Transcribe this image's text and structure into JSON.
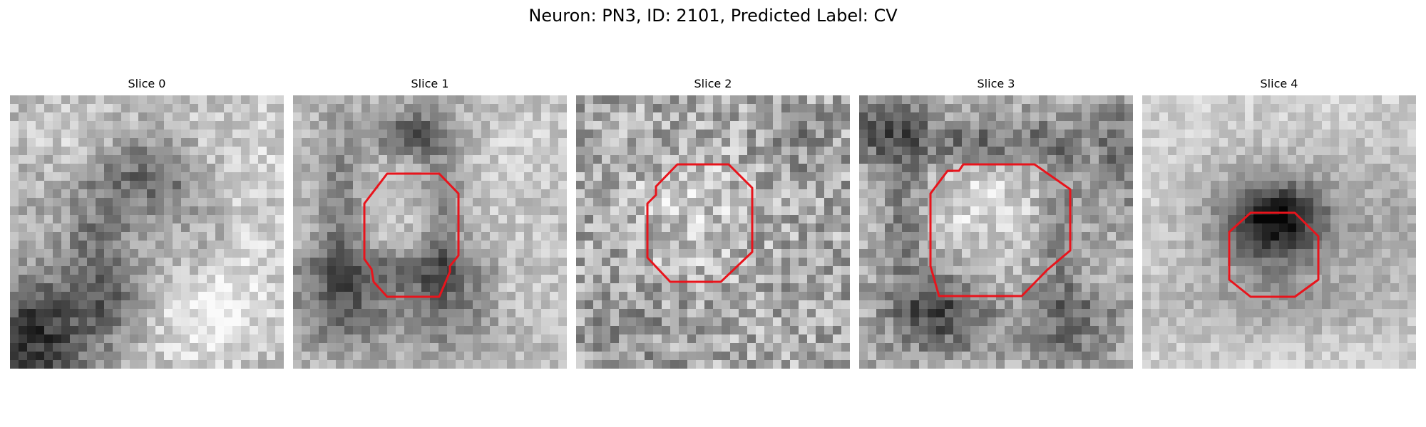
{
  "figure": {
    "title": "Neuron: PN3, ID: 2101, Predicted Label: CV"
  },
  "slices": [
    {
      "title": "Slice 0",
      "contour": false
    },
    {
      "title": "Slice 1",
      "contour": true
    },
    {
      "title": "Slice 2",
      "contour": true
    },
    {
      "title": "Slice 3",
      "contour": true
    },
    {
      "title": "Slice 4",
      "contour": true
    }
  ],
  "colors": {
    "contour": "#e8141c",
    "colormap": "gray"
  }
}
